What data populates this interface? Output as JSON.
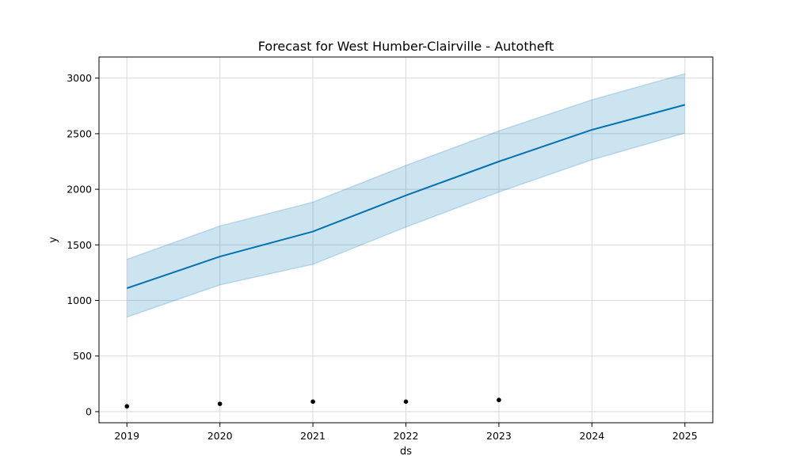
{
  "chart_data": {
    "type": "line",
    "title": "Forecast for West Humber-Clairville - Autotheft",
    "xlabel": "ds",
    "ylabel": "y",
    "xlim": [
      2018.7,
      2025.3
    ],
    "ylim": [
      -100,
      3190
    ],
    "x_ticks": [
      2019,
      2020,
      2021,
      2022,
      2023,
      2024,
      2025
    ],
    "y_ticks": [
      0,
      500,
      1000,
      1500,
      2000,
      2500,
      3000
    ],
    "grid": true,
    "colors": {
      "forecast_line": "#0072B2",
      "interval_fill": "#0072B2",
      "observed_points": "#000000"
    },
    "series": [
      {
        "kind": "forecast",
        "x": [
          2019,
          2020,
          2021,
          2022,
          2023,
          2024,
          2025
        ],
        "y": [
          1110,
          1395,
          1620,
          1945,
          2250,
          2535,
          2760
        ]
      },
      {
        "kind": "interval",
        "x": [
          2019,
          2020,
          2021,
          2022,
          2023,
          2024,
          2025
        ],
        "lower": [
          850,
          1140,
          1325,
          1660,
          1975,
          2265,
          2505
        ],
        "upper": [
          1370,
          1670,
          1885,
          2215,
          2525,
          2805,
          3040
        ]
      },
      {
        "kind": "observed",
        "x": [
          2019,
          2020,
          2021,
          2022,
          2023
        ],
        "y": [
          48,
          70,
          90,
          90,
          105
        ]
      }
    ]
  }
}
